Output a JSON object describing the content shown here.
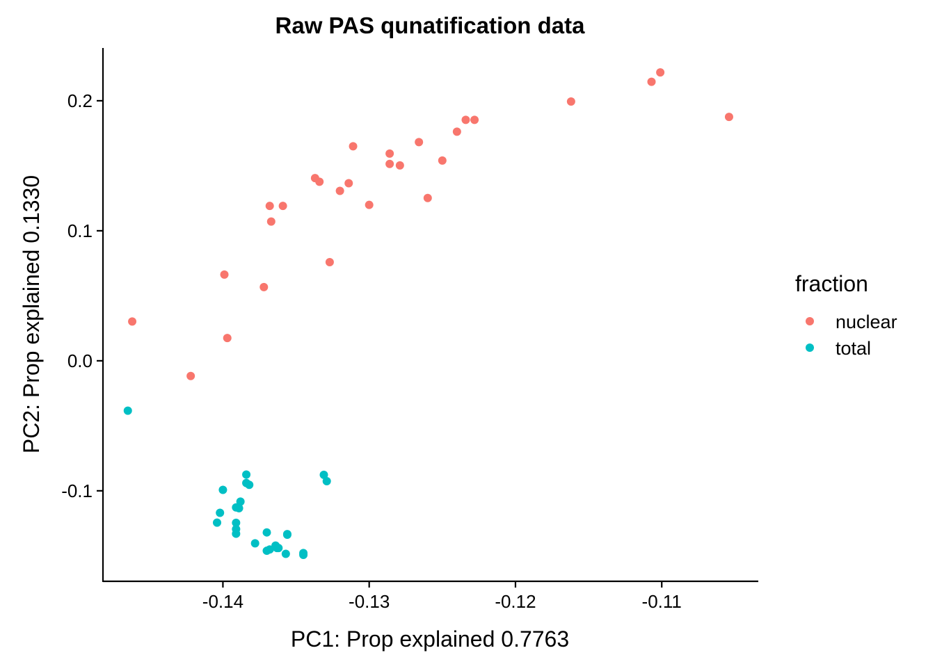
{
  "chart_data": {
    "type": "scatter",
    "title": "Raw PAS qunatification data",
    "xlabel": "PC1: Prop explained 0.7763",
    "ylabel": "PC2: Prop explained 0.1330",
    "xlim": [
      -0.1482,
      -0.1034
    ],
    "ylim": [
      -0.1696,
      0.2406
    ],
    "x_ticks": [
      -0.14,
      -0.13,
      -0.12,
      -0.11
    ],
    "x_tick_labels": [
      "-0.14",
      "-0.13",
      "-0.12",
      "-0.11"
    ],
    "y_ticks": [
      -0.1,
      0.0,
      0.1,
      0.2
    ],
    "y_tick_labels": [
      "-0.1",
      "0.0",
      "0.1",
      "0.2"
    ],
    "grid": false,
    "legend": {
      "title": "fraction",
      "position": "right"
    },
    "series": [
      {
        "name": "nuclear",
        "color": "#F8766D",
        "points": [
          [
            -0.1462,
            0.0302
          ],
          [
            -0.1422,
            -0.0117
          ],
          [
            -0.1399,
            0.0663
          ],
          [
            -0.1397,
            0.0175
          ],
          [
            -0.1372,
            0.0567
          ],
          [
            -0.1368,
            0.1191
          ],
          [
            -0.1367,
            0.1071
          ],
          [
            -0.1359,
            0.1191
          ],
          [
            -0.1337,
            0.1405
          ],
          [
            -0.1334,
            0.1377
          ],
          [
            -0.1327,
            0.0759
          ],
          [
            -0.132,
            0.1307
          ],
          [
            -0.1314,
            0.1366
          ],
          [
            -0.1311,
            0.165
          ],
          [
            -0.13,
            0.1199
          ],
          [
            -0.1286,
            0.1594
          ],
          [
            -0.1286,
            0.1514
          ],
          [
            -0.1279,
            0.1503
          ],
          [
            -0.1266,
            0.1682
          ],
          [
            -0.126,
            0.1252
          ],
          [
            -0.125,
            0.154
          ],
          [
            -0.124,
            0.1762
          ],
          [
            -0.1234,
            0.1853
          ],
          [
            -0.1228,
            0.1853
          ],
          [
            -0.1162,
            0.1994
          ],
          [
            -0.1107,
            0.2146
          ],
          [
            -0.1101,
            0.2218
          ],
          [
            -0.1054,
            0.1876
          ]
        ]
      },
      {
        "name": "total",
        "color": "#00BFC4",
        "points": [
          [
            -0.1465,
            -0.0384
          ],
          [
            -0.1404,
            -0.1245
          ],
          [
            -0.1402,
            -0.1169
          ],
          [
            -0.14,
            -0.0993
          ],
          [
            -0.1391,
            -0.1128
          ],
          [
            -0.1391,
            -0.1246
          ],
          [
            -0.1391,
            -0.1295
          ],
          [
            -0.1391,
            -0.133
          ],
          [
            -0.1389,
            -0.1134
          ],
          [
            -0.1388,
            -0.1083
          ],
          [
            -0.1384,
            -0.0875
          ],
          [
            -0.1384,
            -0.094
          ],
          [
            -0.1382,
            -0.0954
          ],
          [
            -0.1378,
            -0.1404
          ],
          [
            -0.137,
            -0.132
          ],
          [
            -0.137,
            -0.1461
          ],
          [
            -0.1368,
            -0.1451
          ],
          [
            -0.1364,
            -0.1421
          ],
          [
            -0.1363,
            -0.144
          ],
          [
            -0.1362,
            -0.144
          ],
          [
            -0.1357,
            -0.1485
          ],
          [
            -0.1356,
            -0.1333
          ],
          [
            -0.1356,
            -0.1338
          ],
          [
            -0.1345,
            -0.1479
          ],
          [
            -0.1345,
            -0.1493
          ],
          [
            -0.1331,
            -0.0877
          ],
          [
            -0.1329,
            -0.0926
          ]
        ]
      }
    ]
  }
}
